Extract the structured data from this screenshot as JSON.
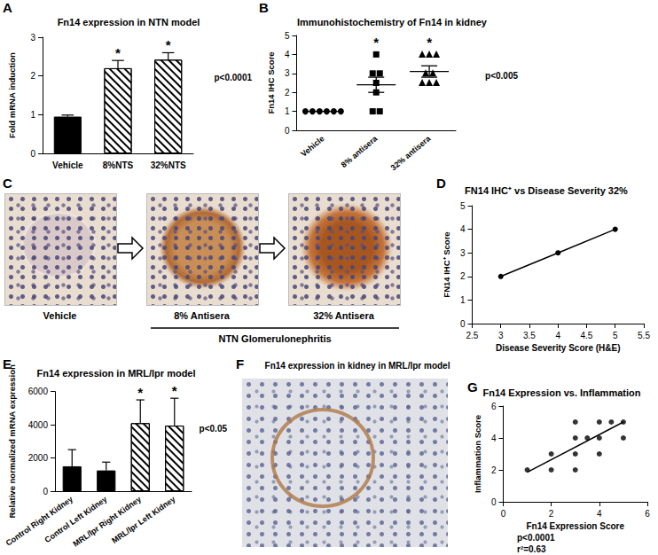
{
  "chart_data": [
    {
      "panel": "A",
      "type": "bar",
      "title": "Fn14 expression in NTN model",
      "y_label": "Fold mRNA induction",
      "categories": [
        "Vehicle",
        "8%NTS",
        "32%NTS"
      ],
      "values": [
        0.95,
        2.2,
        2.42
      ],
      "errors": [
        0.04,
        0.2,
        0.18
      ],
      "colors": [
        "#000000",
        "#ffffff",
        "#ffffff"
      ],
      "significance": [
        null,
        "*",
        "*"
      ],
      "annotation": "p<0.0001",
      "ylim": [
        0,
        3
      ],
      "yticks": [
        0,
        1,
        2,
        3
      ],
      "grid": false
    },
    {
      "panel": "B",
      "type": "scatter",
      "title": "Immunohistochemistry of Fn14 in kidney",
      "y_label": "Fn14 IHC Score",
      "categories": [
        "Vehicle",
        "8% antisera",
        "32% antisera"
      ],
      "values": [
        [
          1,
          1,
          1,
          1,
          1,
          1
        ],
        [
          4,
          3,
          3,
          2.5,
          2,
          1,
          1
        ],
        [
          4,
          4,
          4,
          3,
          3,
          2.5,
          2.5,
          2.5
        ]
      ],
      "markers": [
        "circle",
        "square",
        "triangle"
      ],
      "means": [
        1,
        2.4,
        3.1
      ],
      "sem": [
        0,
        0.4,
        0.3
      ],
      "color": "#000000",
      "significance": [
        null,
        "*",
        "*"
      ],
      "annotation": "p<0.005",
      "ylim": [
        0,
        5
      ],
      "yticks": [
        0,
        1,
        2,
        3,
        4,
        5
      ],
      "grid": false
    },
    {
      "panel": "D",
      "type": "line",
      "title": "FN14 IHC⁺ vs Disease Severity 32%",
      "x_label": "Disease Severity Score (H&E)",
      "y_label": "FN14 IHC⁺ Score",
      "x": [
        3,
        4,
        5
      ],
      "values": [
        2,
        3,
        4
      ],
      "marker": "circle",
      "color": "#000000",
      "xlim": [
        2.5,
        5.5
      ],
      "xticks": [
        2.5,
        3,
        3.5,
        4,
        4.5,
        5,
        5.5
      ],
      "ylim": [
        0,
        5
      ],
      "yticks": [
        0,
        1,
        2,
        3,
        4,
        5
      ],
      "grid": false
    },
    {
      "panel": "E",
      "type": "bar",
      "title": "Fn14 expression in MRL/lpr model",
      "y_label": "Relative normalized mRNA expression",
      "categories": [
        "Control Right Kidney",
        "Control Left Kidney",
        "MRL/lpr Right Kidney",
        "MRL/lpr Left Kidney"
      ],
      "values": [
        1500,
        1250,
        4100,
        3950
      ],
      "errors": [
        1000,
        500,
        1400,
        1650
      ],
      "colors": [
        "#000000",
        "#000000",
        "#ffffff",
        "#ffffff"
      ],
      "significance": [
        null,
        null,
        "*",
        "*"
      ],
      "annotation": "p<0.05",
      "ylim": [
        0,
        6000
      ],
      "yticks": [
        0,
        2000,
        4000,
        6000
      ],
      "grid": false
    },
    {
      "panel": "G",
      "type": "scatter",
      "title": "Fn14 Expression vs. Inflammation",
      "x_label": "Fn14 Expression Score",
      "y_label": "Inflammation Score",
      "x": [
        1,
        2,
        2,
        3,
        3,
        3,
        3,
        3.5,
        4,
        4,
        4,
        4.5,
        5,
        5
      ],
      "values": [
        2,
        2,
        3,
        5,
        4,
        3,
        2,
        4,
        5,
        4,
        3,
        5,
        5,
        4
      ],
      "fit": {
        "x": [
          1,
          5
        ],
        "values": [
          1.85,
          5
        ]
      },
      "marker": "circle",
      "color": "#000000",
      "annotations": [
        "p<0.0001",
        "r²=0.63"
      ],
      "xlim": [
        0,
        6
      ],
      "xticks": [
        0,
        2,
        4,
        6
      ],
      "ylim": [
        0,
        6
      ],
      "yticks": [
        0,
        2,
        4,
        6
      ],
      "grid": false
    }
  ],
  "images": [
    {
      "panel": "C",
      "labels": [
        "Vehicle",
        "8% Antisera",
        "32% Antisera"
      ],
      "group_label": "NTN Glomerulonephritis"
    },
    {
      "panel": "F",
      "title": "Fn14 expression in kidney in MRL/lpr model"
    }
  ]
}
